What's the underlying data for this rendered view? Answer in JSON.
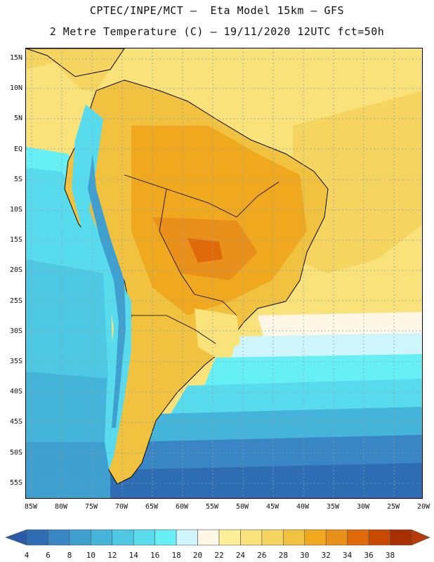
{
  "header": {
    "line1": "CPTEC/INPE/MCT –  Eta Model 15km – GFS",
    "line2": "2 Metre Temperature (C) – 19/11/2020 12UTC fct=50h"
  },
  "map": {
    "lat_labels": [
      "15N",
      "10N",
      "5N",
      "EQ",
      "5S",
      "10S",
      "15S",
      "20S",
      "25S",
      "30S",
      "35S",
      "40S",
      "45S",
      "50S",
      "55S"
    ],
    "lon_labels": [
      "85W",
      "80W",
      "75W",
      "70W",
      "65W",
      "60W",
      "55W",
      "50W",
      "45W",
      "40W",
      "35W",
      "30W",
      "25W",
      "20W"
    ]
  },
  "colorbar": {
    "levels": [
      "4",
      "6",
      "8",
      "10",
      "12",
      "14",
      "16",
      "18",
      "20",
      "22",
      "24",
      "26",
      "28",
      "30",
      "32",
      "34",
      "36",
      "38"
    ],
    "colors": [
      "#2e6db3",
      "#3a85c4",
      "#3f9fcf",
      "#44b4d9",
      "#4ec8e3",
      "#58dced",
      "#66f0f5",
      "#cdf5fb",
      "#fff7e6",
      "#ffef99",
      "#fae27a",
      "#f5d45f",
      "#f0c23f",
      "#f0a81f",
      "#e8901a",
      "#e06a0a",
      "#c84a00",
      "#a83000"
    ],
    "low_color": "#2a5aa8",
    "high_color": "#b83a0a"
  }
}
